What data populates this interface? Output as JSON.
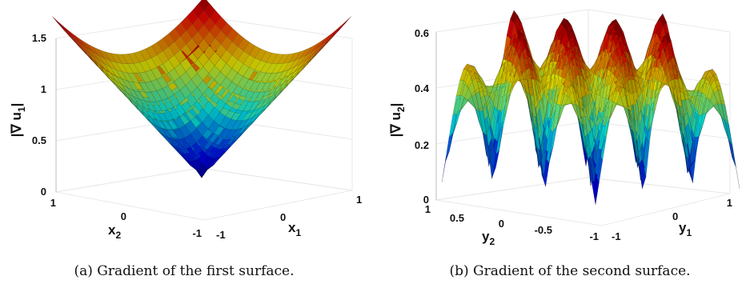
{
  "chart_data": [
    {
      "type": "surface",
      "surface": "gradient magnitude |x1|+|x2| style (cone, minimum at origin, max at corners)",
      "zlabel": "|∇ u",
      "zlabel_sub": "1",
      "zlabel_close": "|",
      "xlabel": "x",
      "xlabel_sub": "1",
      "ylabel": "x",
      "ylabel_sub": "2",
      "zlim": [
        0,
        1.5
      ],
      "zticks": [
        "0",
        "0.5",
        "1",
        "1.5"
      ],
      "xticks": [
        "-1",
        "0",
        "1"
      ],
      "yticks": [
        "1",
        "0",
        "-1"
      ],
      "grid": true,
      "colormap": "jet",
      "caption": "(a) Gradient of the first surface."
    },
    {
      "type": "surface",
      "surface": "oscillating gradient magnitude with multiple peaks and wells",
      "zlabel": "|∇ u",
      "zlabel_sub": "2",
      "zlabel_close": "|",
      "xlabel": "y",
      "xlabel_sub": "1",
      "ylabel": "y",
      "ylabel_sub": "2",
      "zlim": [
        0,
        0.6
      ],
      "zticks": [
        "0",
        "0.2",
        "0.4",
        "0.6"
      ],
      "xticks": [
        "-1",
        "0",
        "1"
      ],
      "yticks": [
        "1",
        "0.5",
        "0",
        "-0.5",
        "-1"
      ],
      "grid": true,
      "colormap": "jet",
      "caption": "(b) Gradient of the second surface."
    }
  ]
}
